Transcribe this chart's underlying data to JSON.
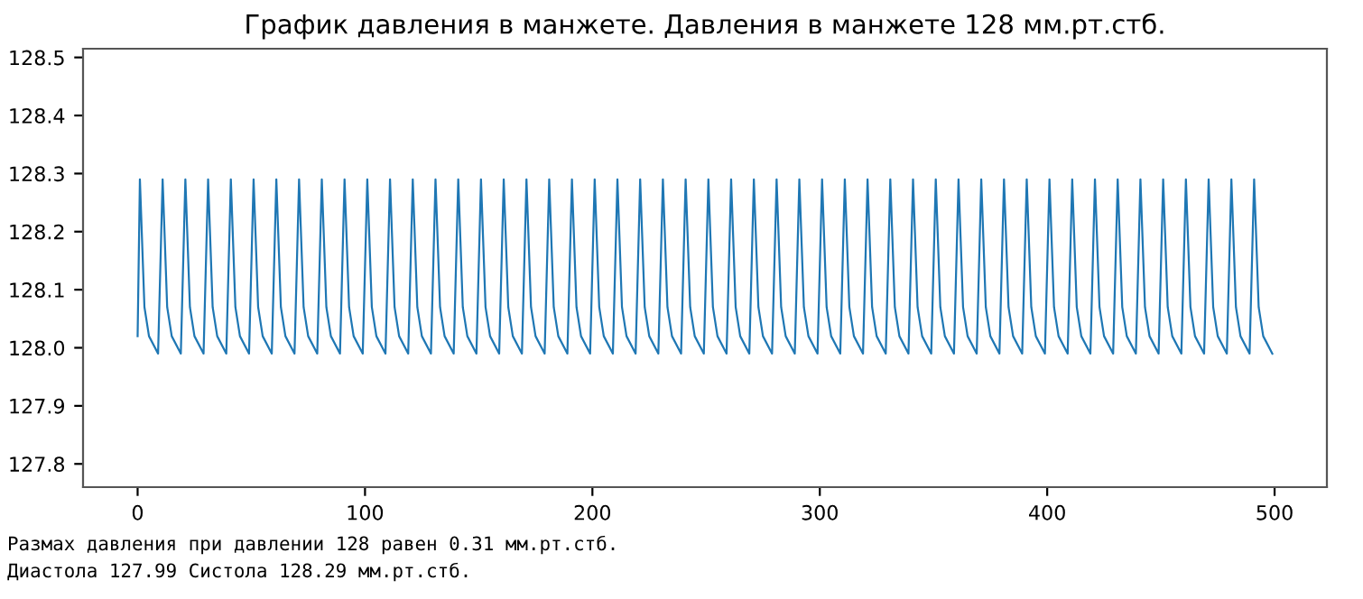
{
  "chart_data": {
    "type": "line",
    "title": "График давления в манжете. Давления в манжете 128 мм.рт.стб.",
    "annotations": [
      "Размах давления при давлении 128 равен 0.31 мм.рт.стб.",
      "Диастола 127.99 Систола 128.29 мм.рт.стб."
    ],
    "xlim": [
      -24,
      523
    ],
    "ylim": [
      127.76,
      128.515
    ],
    "xticks": [
      0,
      100,
      200,
      300,
      400,
      500
    ],
    "yticks": [
      127.8,
      127.9,
      {
        "value": 128.0,
        "label": "128.0"
      },
      128.1,
      128.2,
      128.3,
      128.4,
      128.5
    ],
    "grid": false,
    "marker": "none",
    "line_style": "solid",
    "series": [
      {
        "color": "#1f77b4",
        "x": [
          0,
          1,
          3,
          5,
          9,
          11,
          13,
          15,
          19,
          21,
          23,
          25,
          29,
          31,
          33,
          35,
          39,
          41,
          43,
          45,
          49,
          51,
          53,
          55,
          59,
          61,
          63,
          65,
          69,
          71,
          73,
          75,
          79,
          81,
          83,
          85,
          89,
          91,
          93,
          95,
          99,
          101,
          103,
          105,
          109,
          111,
          113,
          115,
          119,
          121,
          123,
          125,
          129,
          131,
          133,
          135,
          139,
          141,
          143,
          145,
          149,
          151,
          153,
          155,
          159,
          161,
          163,
          165,
          169,
          171,
          173,
          175,
          179,
          181,
          183,
          185,
          189,
          191,
          193,
          195,
          199,
          201,
          203,
          205,
          209,
          211,
          213,
          215,
          219,
          221,
          223,
          225,
          229,
          231,
          233,
          235,
          239,
          241,
          243,
          245,
          249,
          251,
          253,
          255,
          259,
          261,
          263,
          265,
          269,
          271,
          273,
          275,
          279,
          281,
          283,
          285,
          289,
          291,
          293,
          295,
          299,
          301,
          303,
          305,
          309,
          311,
          313,
          315,
          319,
          321,
          323,
          325,
          329,
          331,
          333,
          335,
          339,
          341,
          343,
          345,
          349,
          351,
          353,
          355,
          359,
          361,
          363,
          365,
          369,
          371,
          373,
          375,
          379,
          381,
          383,
          385,
          389,
          391,
          393,
          395,
          399,
          401,
          403,
          405,
          409,
          411,
          413,
          415,
          419,
          421,
          423,
          425,
          429,
          431,
          433,
          435,
          439,
          441,
          443,
          445,
          449,
          451,
          453,
          455,
          459,
          461,
          463,
          465,
          469,
          471,
          473,
          475,
          479,
          481,
          483,
          485,
          489,
          491,
          493,
          495,
          499
        ],
        "values": [
          128.02,
          128.29,
          128.07,
          128.02,
          127.99,
          128.29,
          128.07,
          128.02,
          127.99,
          128.29,
          128.07,
          128.02,
          127.99,
          128.29,
          128.07,
          128.02,
          127.99,
          128.29,
          128.07,
          128.02,
          127.99,
          128.29,
          128.07,
          128.02,
          127.99,
          128.29,
          128.07,
          128.02,
          127.99,
          128.29,
          128.07,
          128.02,
          127.99,
          128.29,
          128.07,
          128.02,
          127.99,
          128.29,
          128.07,
          128.02,
          127.99,
          128.29,
          128.07,
          128.02,
          127.99,
          128.29,
          128.07,
          128.02,
          127.99,
          128.29,
          128.07,
          128.02,
          127.99,
          128.29,
          128.07,
          128.02,
          127.99,
          128.29,
          128.07,
          128.02,
          127.99,
          128.29,
          128.07,
          128.02,
          127.99,
          128.29,
          128.07,
          128.02,
          127.99,
          128.29,
          128.07,
          128.02,
          127.99,
          128.29,
          128.07,
          128.02,
          127.99,
          128.29,
          128.07,
          128.02,
          127.99,
          128.29,
          128.07,
          128.02,
          127.99,
          128.29,
          128.07,
          128.02,
          127.99,
          128.29,
          128.07,
          128.02,
          127.99,
          128.29,
          128.07,
          128.02,
          127.99,
          128.29,
          128.07,
          128.02,
          127.99,
          128.29,
          128.07,
          128.02,
          127.99,
          128.29,
          128.07,
          128.02,
          127.99,
          128.29,
          128.07,
          128.02,
          127.99,
          128.29,
          128.07,
          128.02,
          127.99,
          128.29,
          128.07,
          128.02,
          127.99,
          128.29,
          128.07,
          128.02,
          127.99,
          128.29,
          128.07,
          128.02,
          127.99,
          128.29,
          128.07,
          128.02,
          127.99,
          128.29,
          128.07,
          128.02,
          127.99,
          128.29,
          128.07,
          128.02,
          127.99,
          128.29,
          128.07,
          128.02,
          127.99,
          128.29,
          128.07,
          128.02,
          127.99,
          128.29,
          128.07,
          128.02,
          127.99,
          128.29,
          128.07,
          128.02,
          127.99,
          128.29,
          128.07,
          128.02,
          127.99,
          128.29,
          128.07,
          128.02,
          127.99,
          128.29,
          128.07,
          128.02,
          127.99,
          128.29,
          128.07,
          128.02,
          127.99,
          128.29,
          128.07,
          128.02,
          127.99,
          128.29,
          128.07,
          128.02,
          127.99,
          128.29,
          128.07,
          128.02,
          127.99,
          128.29,
          128.07,
          128.02,
          127.99,
          128.29,
          128.07,
          128.02,
          127.99,
          128.29,
          128.07,
          128.02,
          127.99,
          128.29,
          128.07,
          128.02,
          127.99
        ]
      }
    ]
  }
}
